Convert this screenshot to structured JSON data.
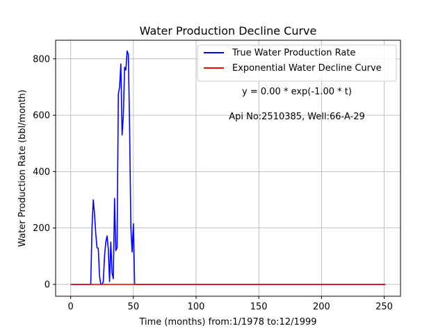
{
  "chart_data": {
    "type": "line",
    "title": "Water Production Decline Curve",
    "xlabel": "Time (months) from:1/1978 to:12/1999",
    "ylabel": "Water Production Rate (bbl/month)",
    "xlim": [
      -12,
      263
    ],
    "ylim": [
      -42,
      866
    ],
    "xticks": [
      0,
      50,
      100,
      150,
      200,
      250
    ],
    "yticks": [
      0,
      200,
      400,
      600,
      800
    ],
    "grid": true,
    "legend_position": "top-right",
    "annotations": [
      "y = 0.00 * exp(-1.00 * t)",
      "Api No:2510385, Well:66-A-29"
    ],
    "series": [
      {
        "name": "True Water Production Rate",
        "color": "#0000ff",
        "x": [
          0,
          16,
          17,
          18,
          19,
          20,
          21,
          22,
          23,
          24,
          25,
          26,
          27,
          28,
          29,
          30,
          31,
          32,
          33,
          34,
          35,
          36,
          37,
          38,
          39,
          40,
          41,
          42,
          43,
          44,
          45,
          46,
          47,
          48,
          49,
          50,
          51,
          52,
          60,
          100,
          150,
          200,
          251
        ],
        "y": [
          0,
          0,
          200,
          300,
          250,
          180,
          130,
          128,
          30,
          0,
          0,
          10,
          100,
          150,
          172,
          125,
          10,
          150,
          40,
          20,
          305,
          120,
          130,
          675,
          700,
          782,
          530,
          600,
          770,
          760,
          828,
          815,
          550,
          200,
          115,
          215,
          0,
          0,
          0,
          0,
          0,
          0,
          0
        ]
      },
      {
        "name": "Exponential Water Decline Curve",
        "color": "#ff0000",
        "x": [
          0,
          251
        ],
        "y": [
          0,
          0
        ]
      }
    ]
  }
}
